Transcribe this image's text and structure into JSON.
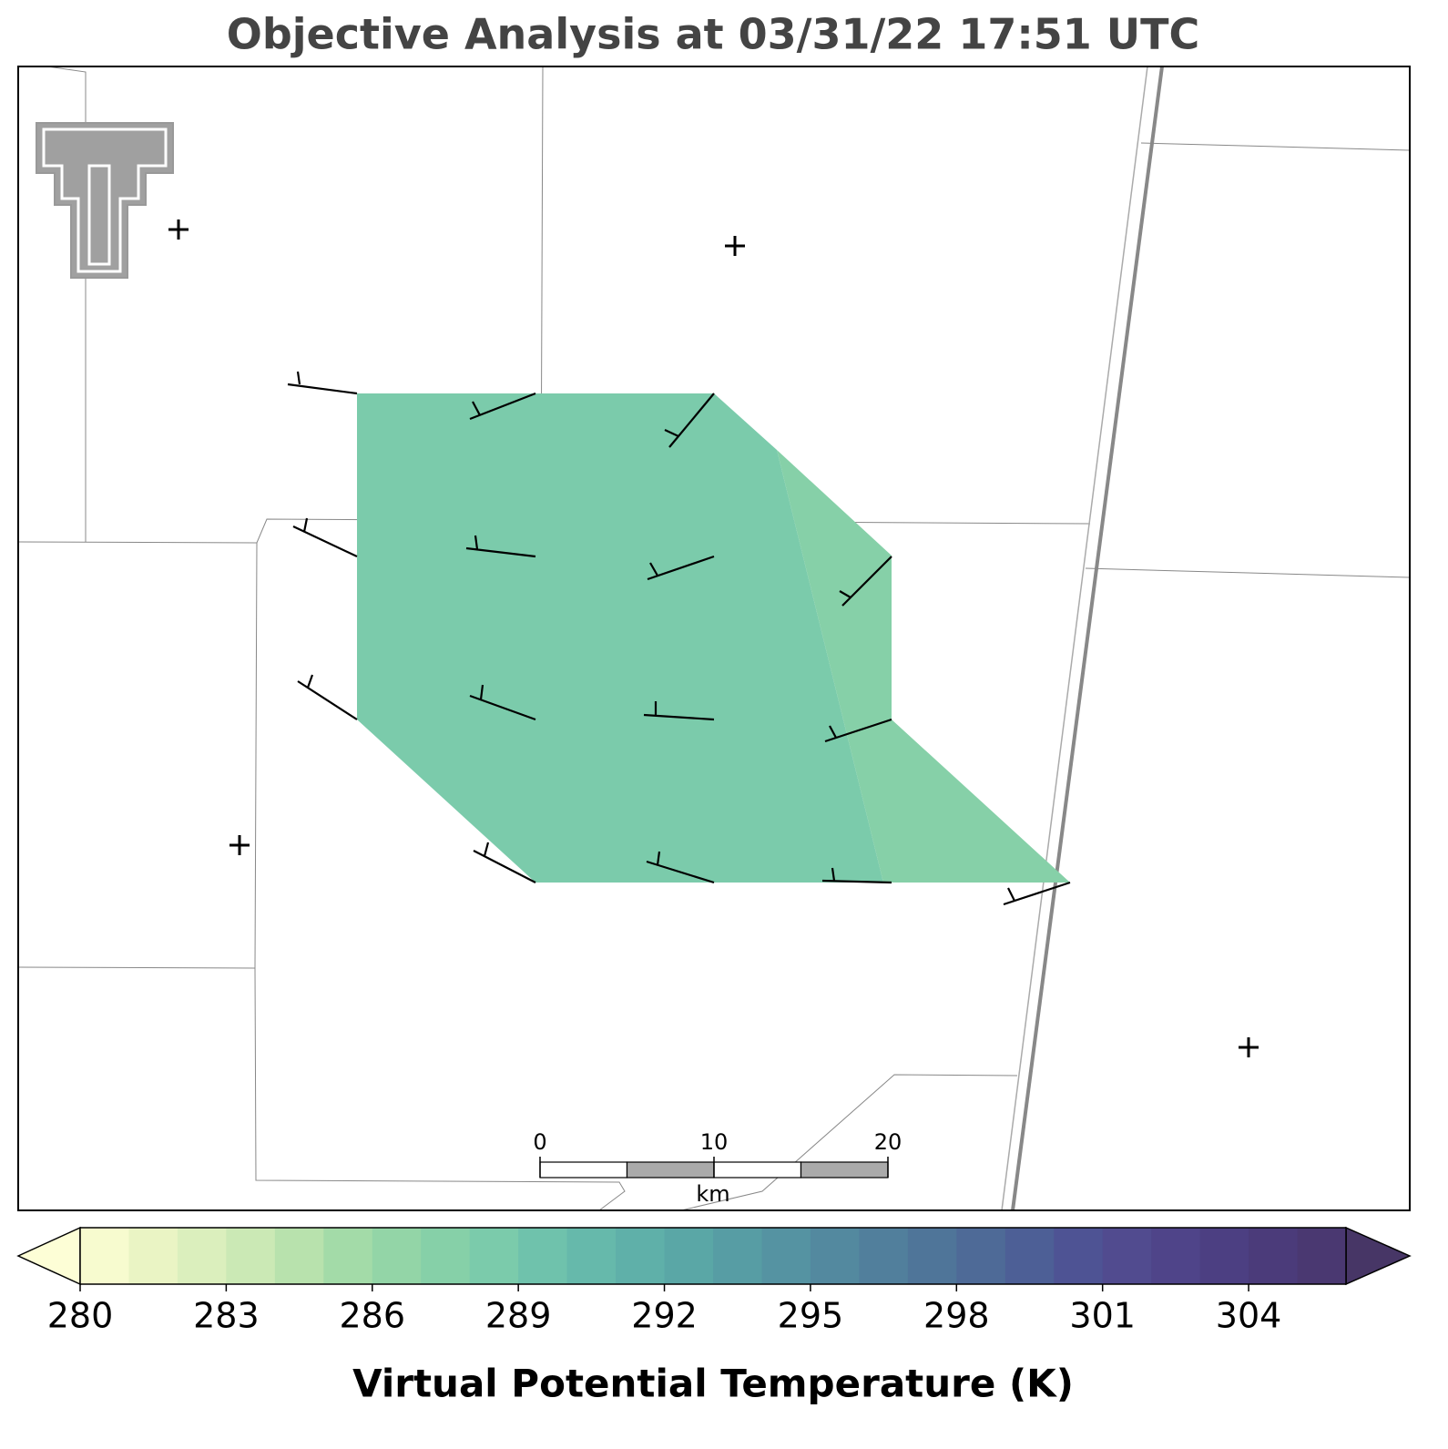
{
  "title": "Objective Analysis at 03/31/22 17:51 UTC",
  "map": {
    "regions": [
      {
        "value": 288
      },
      {
        "value": 287
      }
    ]
  },
  "scale_bar": {
    "ticks": [
      0,
      10,
      20
    ],
    "unit": "km"
  },
  "colorbar": {
    "label": "Virtual Potential Temperature (K)",
    "levels": [
      280,
      281,
      282,
      283,
      284,
      285,
      286,
      287,
      288,
      289,
      290,
      291,
      292,
      293,
      294,
      295,
      296,
      297,
      298,
      299,
      300,
      301,
      302,
      303,
      304,
      305,
      306
    ],
    "colors": [
      "#f7fbcf",
      "#eaf4c4",
      "#dbefbd",
      "#cbe9b5",
      "#b8e2ad",
      "#a3dba8",
      "#93d5a7",
      "#86d0a8",
      "#7bcbab",
      "#6fc2ac",
      "#66b9ab",
      "#5fb0a9",
      "#5aa7a6",
      "#579da4",
      "#5593a2",
      "#53899f",
      "#517f9c",
      "#4f7599",
      "#4e6a97",
      "#4d5f96",
      "#4e5394",
      "#514b8f",
      "#4f4489",
      "#4c3f82",
      "#4b3b7a",
      "#4a3871"
    ],
    "under_color": "#fdfed6",
    "over_color": "#473666",
    "ticks": [
      280,
      283,
      286,
      289,
      292,
      295,
      298,
      301,
      304
    ]
  }
}
